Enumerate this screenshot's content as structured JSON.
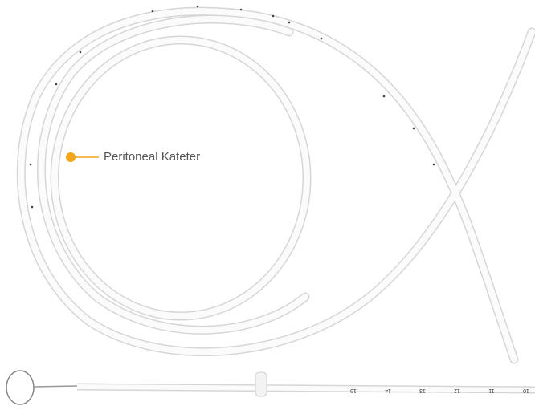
{
  "callout": {
    "label": "Peritoneal Kateter"
  },
  "tube_scale": [
    "15",
    "14",
    "13",
    "12",
    "11",
    "10"
  ]
}
